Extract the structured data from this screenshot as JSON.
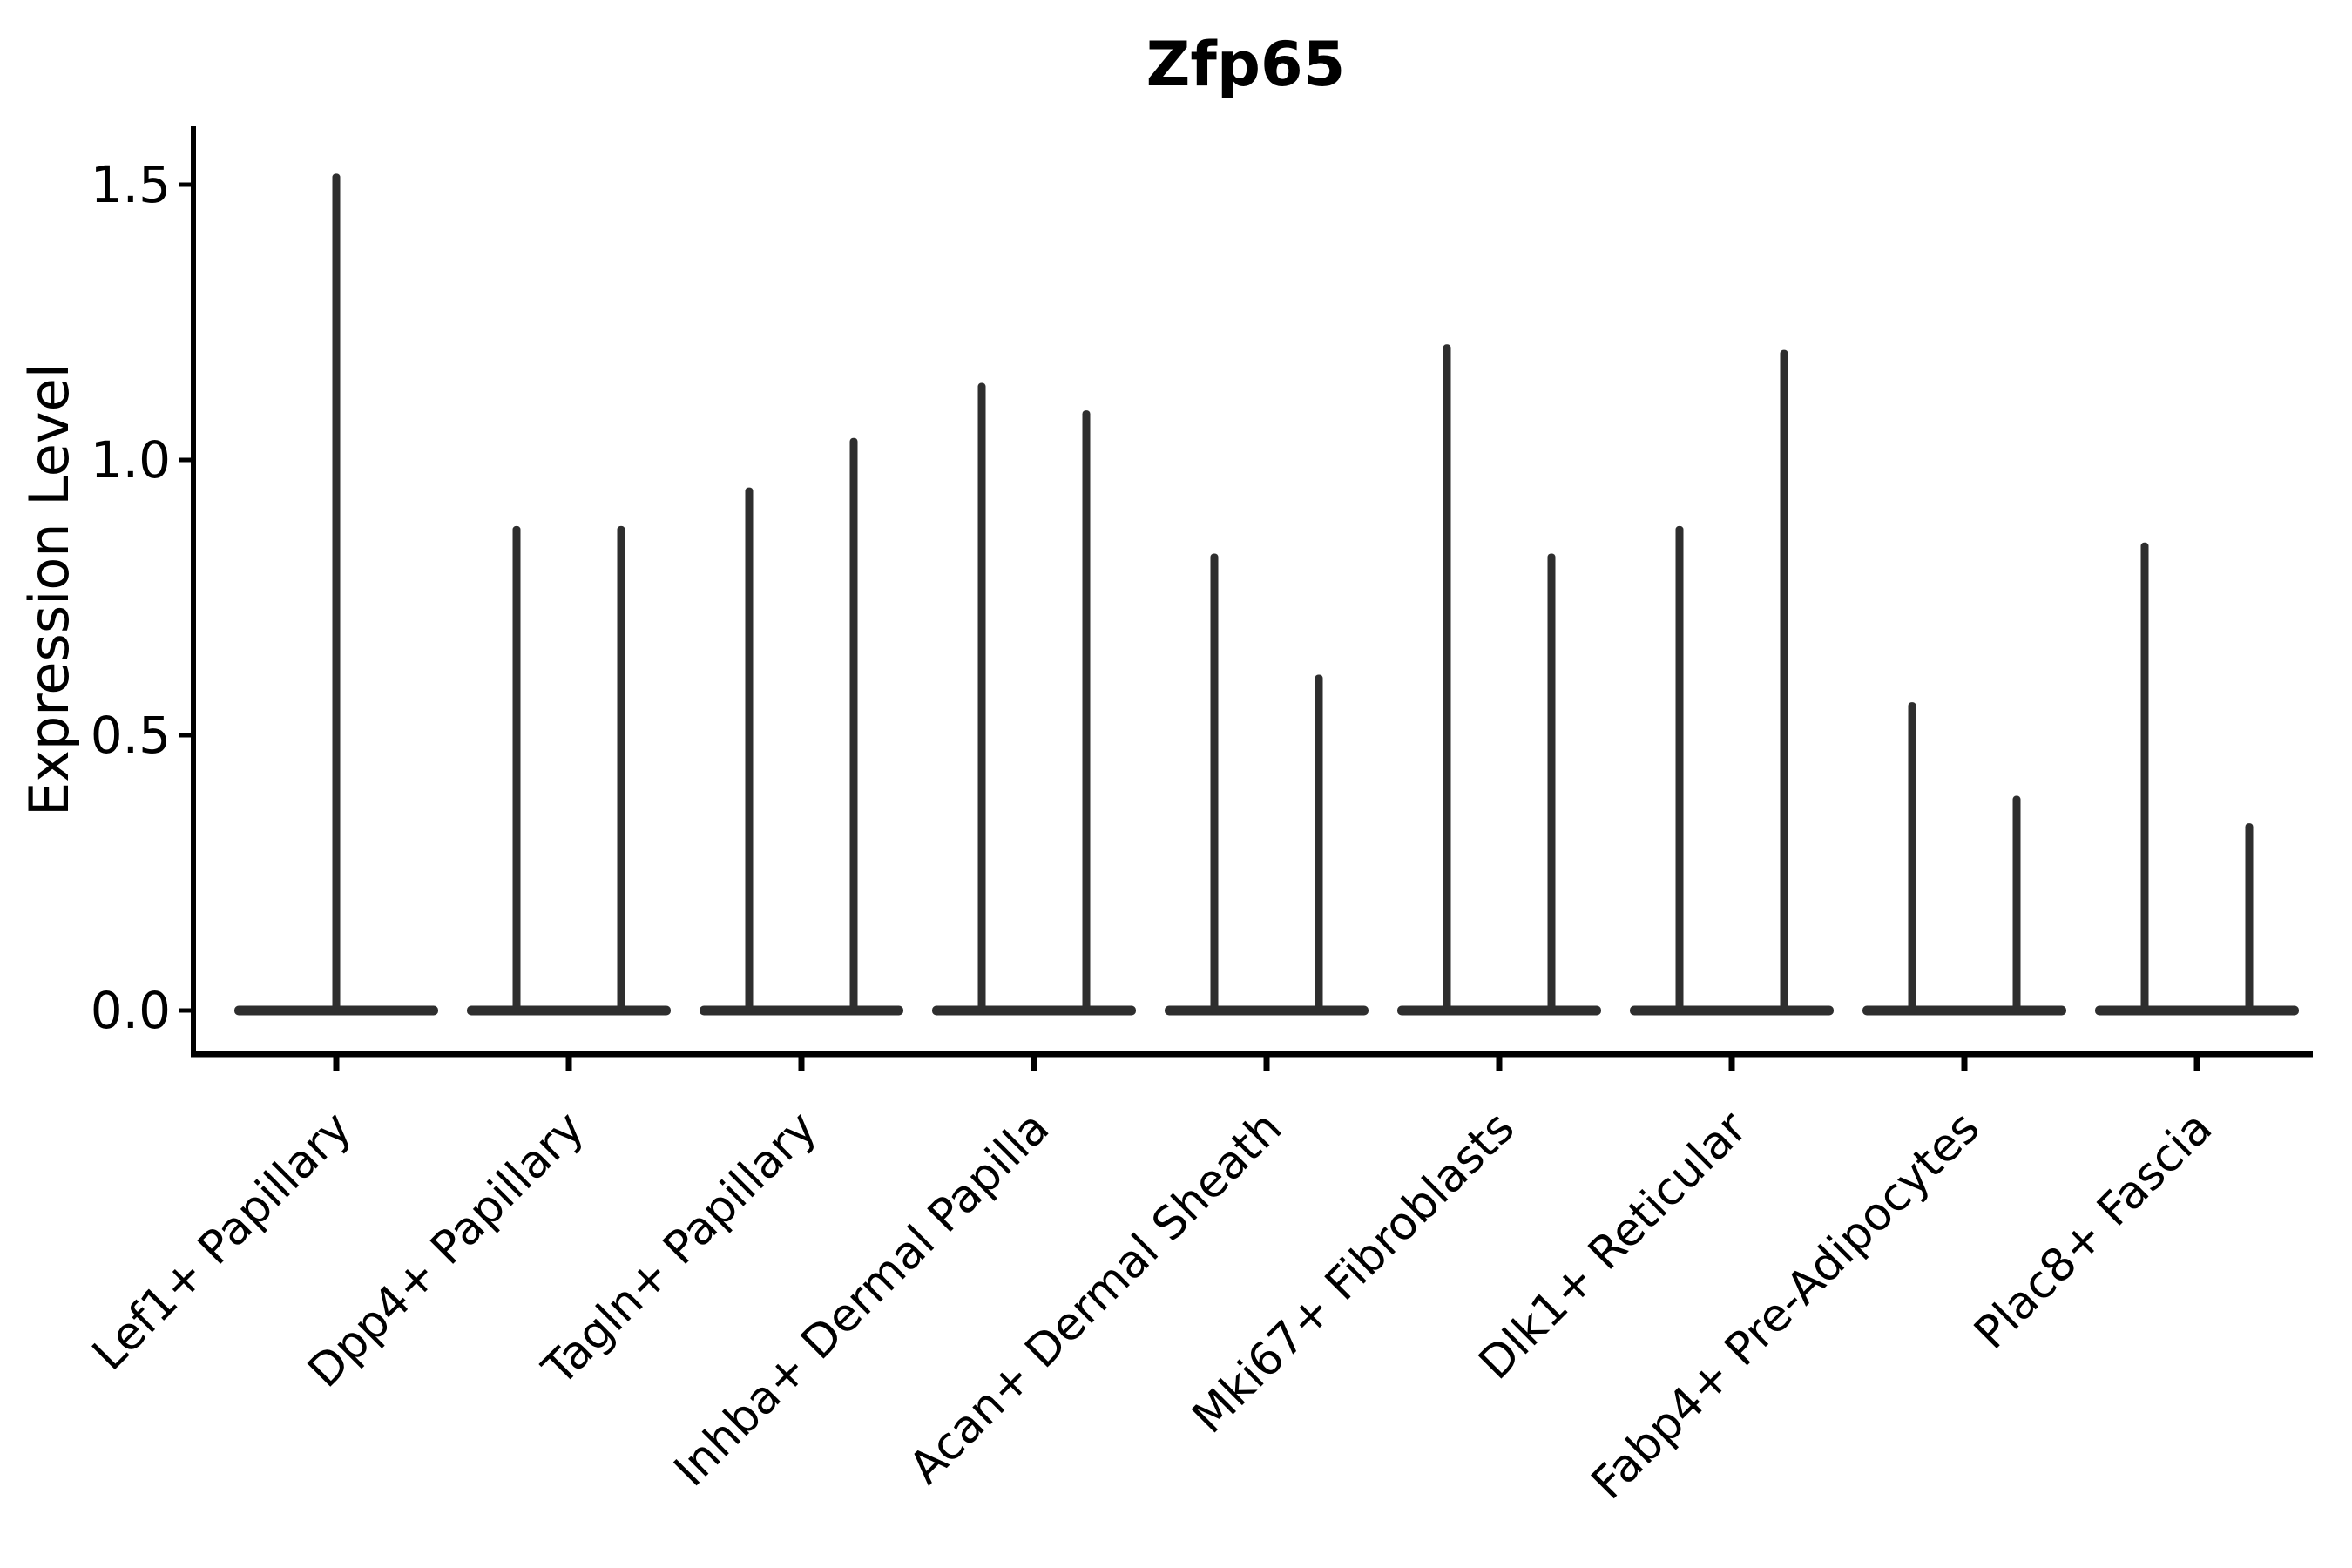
{
  "title": "Zfp65",
  "y_axis": {
    "label": "Expression Level",
    "tick_labels": [
      "0.0",
      "0.5",
      "1.0",
      "1.5"
    ]
  },
  "chart_data": {
    "type": "violin",
    "title": "Zfp65",
    "xlabel": "",
    "ylabel": "Expression Level",
    "ylim": [
      0,
      1.58
    ],
    "yticks": [
      0,
      0.5,
      1,
      1.5
    ],
    "ytick_labels": [
      "0.0",
      "0.5",
      "1.0",
      "1.5"
    ],
    "grid": false,
    "legend_position": "none",
    "categories": [
      "Lef1+ Papillary",
      "Dpp4+ Papillary",
      "Tagln+ Papillary",
      "Inhba+ Dermal Papilla",
      "Acan+ Dermal Sheath",
      "Mki67+ Fibroblasts",
      "Dlk1+ Reticular",
      "Fabp4+ Pre-Adipocytes",
      "Plac8+ Fascia"
    ],
    "violins": [
      {
        "category": "Lef1+ Papillary",
        "spike_maxima": [
          1.52
        ]
      },
      {
        "category": "Dpp4+ Papillary",
        "spike_maxima": [
          0.88,
          0.88
        ]
      },
      {
        "category": "Tagln+ Papillary",
        "spike_maxima": [
          0.95,
          1.04
        ]
      },
      {
        "category": "Inhba+ Dermal Papilla",
        "spike_maxima": [
          1.14,
          1.09
        ]
      },
      {
        "category": "Acan+ Dermal Sheath",
        "spike_maxima": [
          0.83,
          0.61
        ]
      },
      {
        "category": "Mki67+ Fibroblasts",
        "spike_maxima": [
          1.21,
          0.83
        ]
      },
      {
        "category": "Dlk1+ Reticular",
        "spike_maxima": [
          0.88,
          1.2
        ]
      },
      {
        "category": "Fabp4+ Pre-Adipocytes",
        "spike_maxima": [
          0.56,
          0.39
        ]
      },
      {
        "category": "Plac8+ Fascia",
        "spike_maxima": [
          0.85,
          0.34
        ]
      }
    ],
    "colors": {
      "violin": "#2e2e2e",
      "axis": "#000000",
      "background": "#ffffff"
    }
  }
}
